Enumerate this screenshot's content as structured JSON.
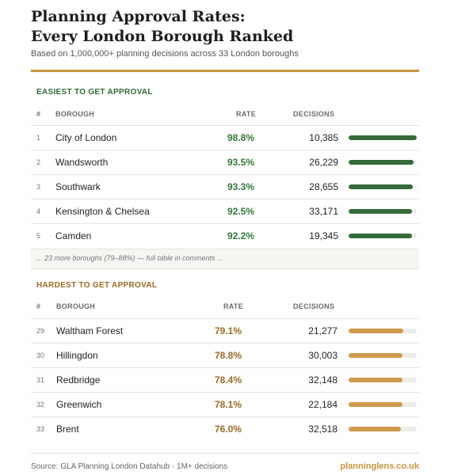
{
  "header": {
    "title_line1": "Planning Approval Rates:",
    "title_line2": "Every London Borough Ranked",
    "subtitle": "Based on 1,000,000+ planning decisions across 33 London boroughs"
  },
  "columns": {
    "rank": "#",
    "borough": "BOROUGH",
    "rate": "RATE",
    "decisions": "DECISIONS"
  },
  "easiest": {
    "title": "EASIEST TO GET APPROVAL",
    "rows": [
      {
        "rank": "1",
        "borough": "City of London",
        "rate": "98.8%",
        "decisions": "10,385",
        "bar_fraction": 1.0
      },
      {
        "rank": "2",
        "borough": "Wandsworth",
        "rate": "93.5%",
        "decisions": "26,229",
        "bar_fraction": 0.95
      },
      {
        "rank": "3",
        "borough": "Southwark",
        "rate": "93.3%",
        "decisions": "28,655",
        "bar_fraction": 0.94
      },
      {
        "rank": "4",
        "borough": "Kensington & Chelsea",
        "rate": "92.5%",
        "decisions": "33,171",
        "bar_fraction": 0.93
      },
      {
        "rank": "5",
        "borough": "Camden",
        "rate": "92.2%",
        "decisions": "19,345",
        "bar_fraction": 0.93
      }
    ]
  },
  "more_note": "... 23 more boroughs (79–88%) — full table in comments ...",
  "hardest": {
    "title": "HARDEST TO GET APPROVAL",
    "rows": [
      {
        "rank": "29",
        "borough": "Waltham Forest",
        "rate": "79.1%",
        "decisions": "21,277",
        "bar_fraction": 0.8
      },
      {
        "rank": "30",
        "borough": "Hillingdon",
        "rate": "78.8%",
        "decisions": "30,003",
        "bar_fraction": 0.79
      },
      {
        "rank": "31",
        "borough": "Redbridge",
        "rate": "78.4%",
        "decisions": "32,148",
        "bar_fraction": 0.79
      },
      {
        "rank": "32",
        "borough": "Greenwich",
        "rate": "78.1%",
        "decisions": "22,184",
        "bar_fraction": 0.79
      },
      {
        "rank": "33",
        "borough": "Brent",
        "rate": "76.0%",
        "decisions": "32,518",
        "bar_fraction": 0.77
      }
    ]
  },
  "footer": {
    "source": "Source: GLA Planning London Datahub · 1M+ decisions",
    "brand": "planninglens.co.uk"
  },
  "colors": {
    "gold_accent": "#c9943f",
    "easy_green": "#2f7a36",
    "easy_bar": "#356b3a",
    "hard_text": "#9a6a24",
    "hard_bar": "#cf9a4b"
  }
}
